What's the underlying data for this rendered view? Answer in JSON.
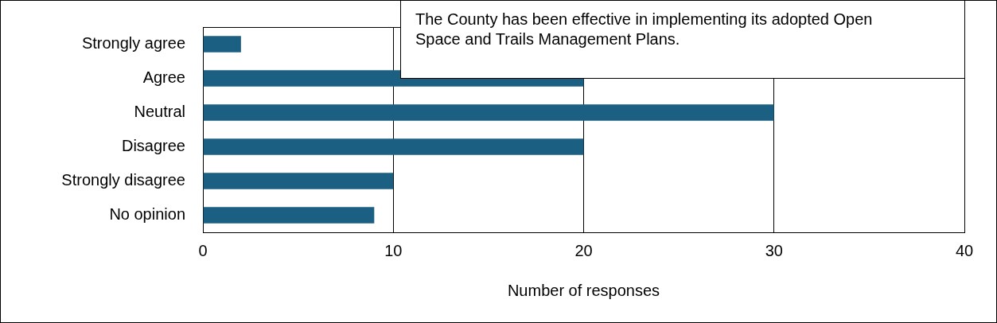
{
  "chart_data": {
    "type": "bar",
    "orientation": "horizontal",
    "title": "The County has been effective in implementing its adopted Open Space and Trails Management Plans.",
    "categories": [
      "Strongly agree",
      "Agree",
      "Neutral",
      "Disagree",
      "Strongly disagree",
      "No opinion"
    ],
    "values": [
      2,
      20,
      30,
      20,
      10,
      9
    ],
    "color": "#1b5f82",
    "xlabel": "Number of responses",
    "xlim": [
      0,
      40
    ],
    "xticks": [
      0,
      10,
      20,
      30,
      40
    ],
    "grid": "x"
  }
}
